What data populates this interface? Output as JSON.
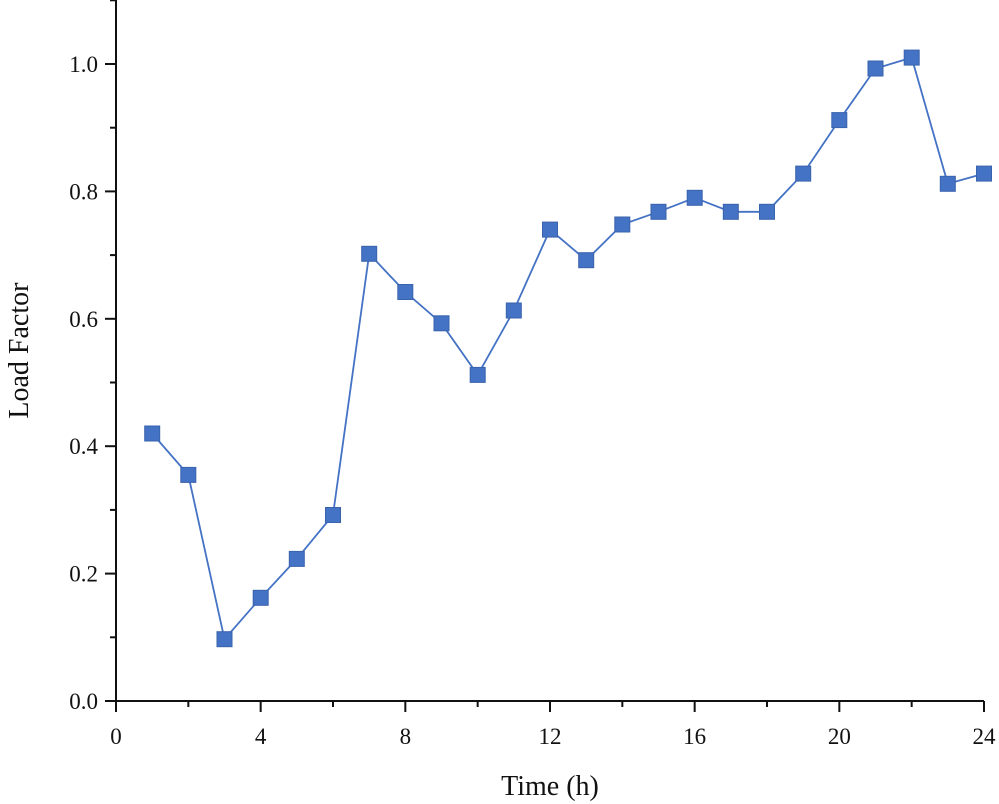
{
  "chart_data": {
    "type": "line",
    "title": "",
    "xlabel": "Time (h)",
    "ylabel": "Load Factor",
    "xlim": [
      0,
      24
    ],
    "ylim": [
      0.0,
      1.1
    ],
    "x_ticks": [
      0,
      4,
      8,
      12,
      16,
      20,
      24
    ],
    "x_tick_labels": [
      "0",
      "4",
      "8",
      "12",
      "16",
      "20",
      "24"
    ],
    "y_ticks": [
      0.0,
      0.2,
      0.4,
      0.6,
      0.8,
      1.0
    ],
    "y_tick_labels": [
      "0.0",
      "0.2",
      "0.4",
      "0.6",
      "0.8",
      "1.0"
    ],
    "grid": false,
    "legend": "none",
    "series": [
      {
        "name": "Load Factor",
        "color": "#4472c4",
        "marker": "square",
        "x": [
          1,
          2,
          3,
          4,
          5,
          6,
          7,
          8,
          9,
          10,
          11,
          12,
          13,
          14,
          15,
          16,
          17,
          18,
          19,
          20,
          21,
          22,
          23,
          24
        ],
        "y": [
          0.42,
          0.355,
          0.097,
          0.162,
          0.223,
          0.292,
          0.702,
          0.642,
          0.593,
          0.512,
          0.613,
          0.74,
          0.692,
          0.748,
          0.768,
          0.79,
          0.768,
          0.768,
          0.828,
          0.912,
          0.993,
          1.01,
          0.812,
          0.828
        ]
      }
    ]
  }
}
